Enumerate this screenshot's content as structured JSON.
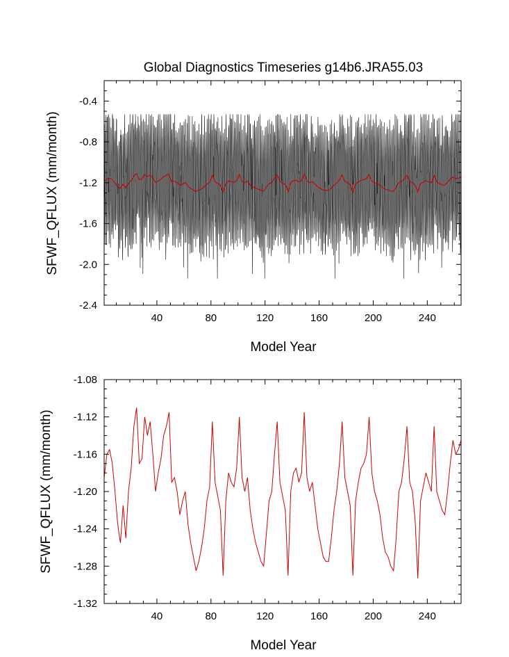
{
  "figure": {
    "title": "Global Diagnostics Timeseries g14b6.JRA55.03"
  },
  "chart_data": [
    {
      "type": "line",
      "xlabel": "Model Year",
      "ylabel": "SFWF_QFLUX (mm/month)",
      "xlim": [
        1,
        265
      ],
      "ylim": [
        -2.4,
        -0.2
      ],
      "xticks": [
        40,
        80,
        120,
        160,
        200,
        240
      ],
      "yticks": [
        -2.4,
        -2.0,
        -1.6,
        -1.2,
        -0.8,
        -0.4
      ],
      "ytick_labels": [
        "-2.4",
        "-2.0",
        "-1.6",
        "-1.2",
        "-0.8",
        "-0.4"
      ],
      "grid": false,
      "series": [
        {
          "color": "#000000",
          "resolution": "monthly",
          "seasonal_range_typical": [
            -1.8,
            -0.6
          ],
          "envelope_max": -0.53,
          "envelope_min": -2.14
        },
        {
          "color": "#cc0000",
          "resolution": "annual mean",
          "typical_range": [
            -1.29,
            -1.11
          ]
        }
      ]
    },
    {
      "type": "line",
      "xlabel": "Model Year",
      "ylabel": "SFWF_QFLUX (mm/month)",
      "xlim": [
        1,
        265
      ],
      "ylim": [
        -1.32,
        -1.08
      ],
      "xticks": [
        40,
        80,
        120,
        160,
        200,
        240
      ],
      "yticks": [
        -1.32,
        -1.28,
        -1.24,
        -1.2,
        -1.16,
        -1.12,
        -1.08
      ],
      "ytick_labels": [
        "-1.32",
        "-1.28",
        "-1.24",
        "-1.20",
        "-1.16",
        "-1.12",
        "-1.08"
      ],
      "grid": false,
      "series": [
        {
          "color": "#cc0000",
          "resolution": "annual mean",
          "x": [
            1,
            3,
            5,
            7,
            9,
            11,
            13,
            15,
            17,
            19,
            21,
            23,
            25,
            27,
            29,
            31,
            33,
            35,
            37,
            39,
            41,
            43,
            45,
            47,
            49,
            51,
            53,
            55,
            57,
            59,
            61,
            63,
            65,
            67,
            69,
            71,
            73,
            75,
            77,
            79,
            81,
            83,
            85,
            87,
            89,
            91,
            93,
            95,
            97,
            99,
            101,
            103,
            105,
            107,
            109,
            111,
            113,
            115,
            117,
            119,
            121,
            123,
            125,
            127,
            129,
            131,
            133,
            135,
            137,
            139,
            141,
            143,
            145,
            147,
            149,
            151,
            153,
            155,
            157,
            159,
            161,
            163,
            165,
            167,
            169,
            171,
            173,
            175,
            177,
            179,
            181,
            183,
            185,
            187,
            189,
            191,
            193,
            195,
            197,
            199,
            201,
            203,
            205,
            207,
            209,
            211,
            213,
            215,
            217,
            219,
            221,
            223,
            225,
            227,
            229,
            231,
            233,
            235,
            237,
            239,
            241,
            243,
            245,
            247,
            249,
            251,
            253,
            255,
            257,
            259,
            261,
            263,
            265
          ],
          "y": [
            -1.185,
            -1.16,
            -1.155,
            -1.17,
            -1.2,
            -1.235,
            -1.255,
            -1.215,
            -1.25,
            -1.2,
            -1.175,
            -1.13,
            -1.11,
            -1.17,
            -1.165,
            -1.12,
            -1.14,
            -1.125,
            -1.16,
            -1.2,
            -1.18,
            -1.165,
            -1.14,
            -1.13,
            -1.115,
            -1.19,
            -1.185,
            -1.2,
            -1.225,
            -1.21,
            -1.2,
            -1.235,
            -1.255,
            -1.27,
            -1.285,
            -1.275,
            -1.26,
            -1.24,
            -1.21,
            -1.195,
            -1.125,
            -1.19,
            -1.205,
            -1.22,
            -1.29,
            -1.21,
            -1.18,
            -1.19,
            -1.195,
            -1.175,
            -1.12,
            -1.185,
            -1.2,
            -1.185,
            -1.22,
            -1.24,
            -1.255,
            -1.265,
            -1.275,
            -1.28,
            -1.245,
            -1.21,
            -1.2,
            -1.16,
            -1.125,
            -1.19,
            -1.205,
            -1.22,
            -1.29,
            -1.2,
            -1.18,
            -1.175,
            -1.19,
            -1.18,
            -1.115,
            -1.185,
            -1.2,
            -1.19,
            -1.215,
            -1.24,
            -1.255,
            -1.27,
            -1.275,
            -1.275,
            -1.25,
            -1.22,
            -1.2,
            -1.17,
            -1.125,
            -1.185,
            -1.2,
            -1.215,
            -1.29,
            -1.21,
            -1.19,
            -1.175,
            -1.17,
            -1.16,
            -1.12,
            -1.18,
            -1.2,
            -1.21,
            -1.225,
            -1.25,
            -1.265,
            -1.27,
            -1.28,
            -1.285,
            -1.25,
            -1.2,
            -1.19,
            -1.165,
            -1.13,
            -1.19,
            -1.2,
            -1.23,
            -1.293,
            -1.21,
            -1.195,
            -1.18,
            -1.19,
            -1.2,
            -1.13,
            -1.2,
            -1.21,
            -1.22,
            -1.225,
            -1.2,
            -1.17,
            -1.145,
            -1.16,
            -1.155,
            -1.145
          ]
        }
      ]
    }
  ]
}
